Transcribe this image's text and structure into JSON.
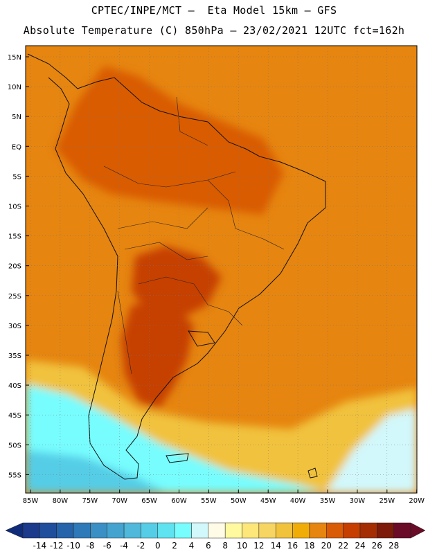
{
  "header": {
    "line1": "CPTEC/INPE/MCT –  Eta Model 15km – GFS",
    "line2": "Absolute Temperature (C) 850hPa – 23/02/2021 12UTC fct=162h"
  },
  "map": {
    "lat_labels": [
      "15N",
      "10N",
      "5N",
      "EQ",
      "5S",
      "10S",
      "15S",
      "20S",
      "25S",
      "30S",
      "35S",
      "40S",
      "45S",
      "50S",
      "55S"
    ],
    "lon_labels": [
      "85W",
      "80W",
      "75W",
      "70W",
      "65W",
      "60W",
      "55W",
      "50W",
      "45W",
      "40W",
      "35W",
      "30W",
      "25W",
      "20W"
    ],
    "regions": [
      {
        "name": "background-warm-zone",
        "value": 18
      },
      {
        "name": "northern-continent-zone",
        "value": 20
      },
      {
        "name": "central-hot-zone",
        "value": 22
      },
      {
        "name": "patagonia-hot-zone",
        "value": 22
      },
      {
        "name": "southern-transition-zone",
        "value": 14
      },
      {
        "name": "southern-ocean-zone",
        "value": 2
      },
      {
        "name": "deep-south-zone",
        "value": -2
      },
      {
        "name": "southeast-ocean-zone",
        "value": 4
      }
    ]
  },
  "colorbar": {
    "labels": [
      "-14",
      "-12",
      "-10",
      "-8",
      "-6",
      "-4",
      "-2",
      "0",
      "2",
      "4",
      "6",
      "8",
      "10",
      "12",
      "14",
      "16",
      "18",
      "20",
      "22",
      "24",
      "26",
      "28"
    ],
    "colors": [
      "#1b3a8c",
      "#1f4e9c",
      "#2563aa",
      "#2e79b8",
      "#3a8fc4",
      "#45a3cf",
      "#50b8da",
      "#55cde6",
      "#5fe3f0",
      "#77fdfe",
      "#d2f8fc",
      "#fffbe6",
      "#fff9a0",
      "#fde77a",
      "#f7d562",
      "#f1c23c",
      "#f1ad07",
      "#e6850f",
      "#d95b05",
      "#c63f00",
      "#a42d03",
      "#7e1a0a",
      "#6a0b27"
    ],
    "low_color": "#0f2b7a",
    "high_color": "#6a0b27"
  }
}
